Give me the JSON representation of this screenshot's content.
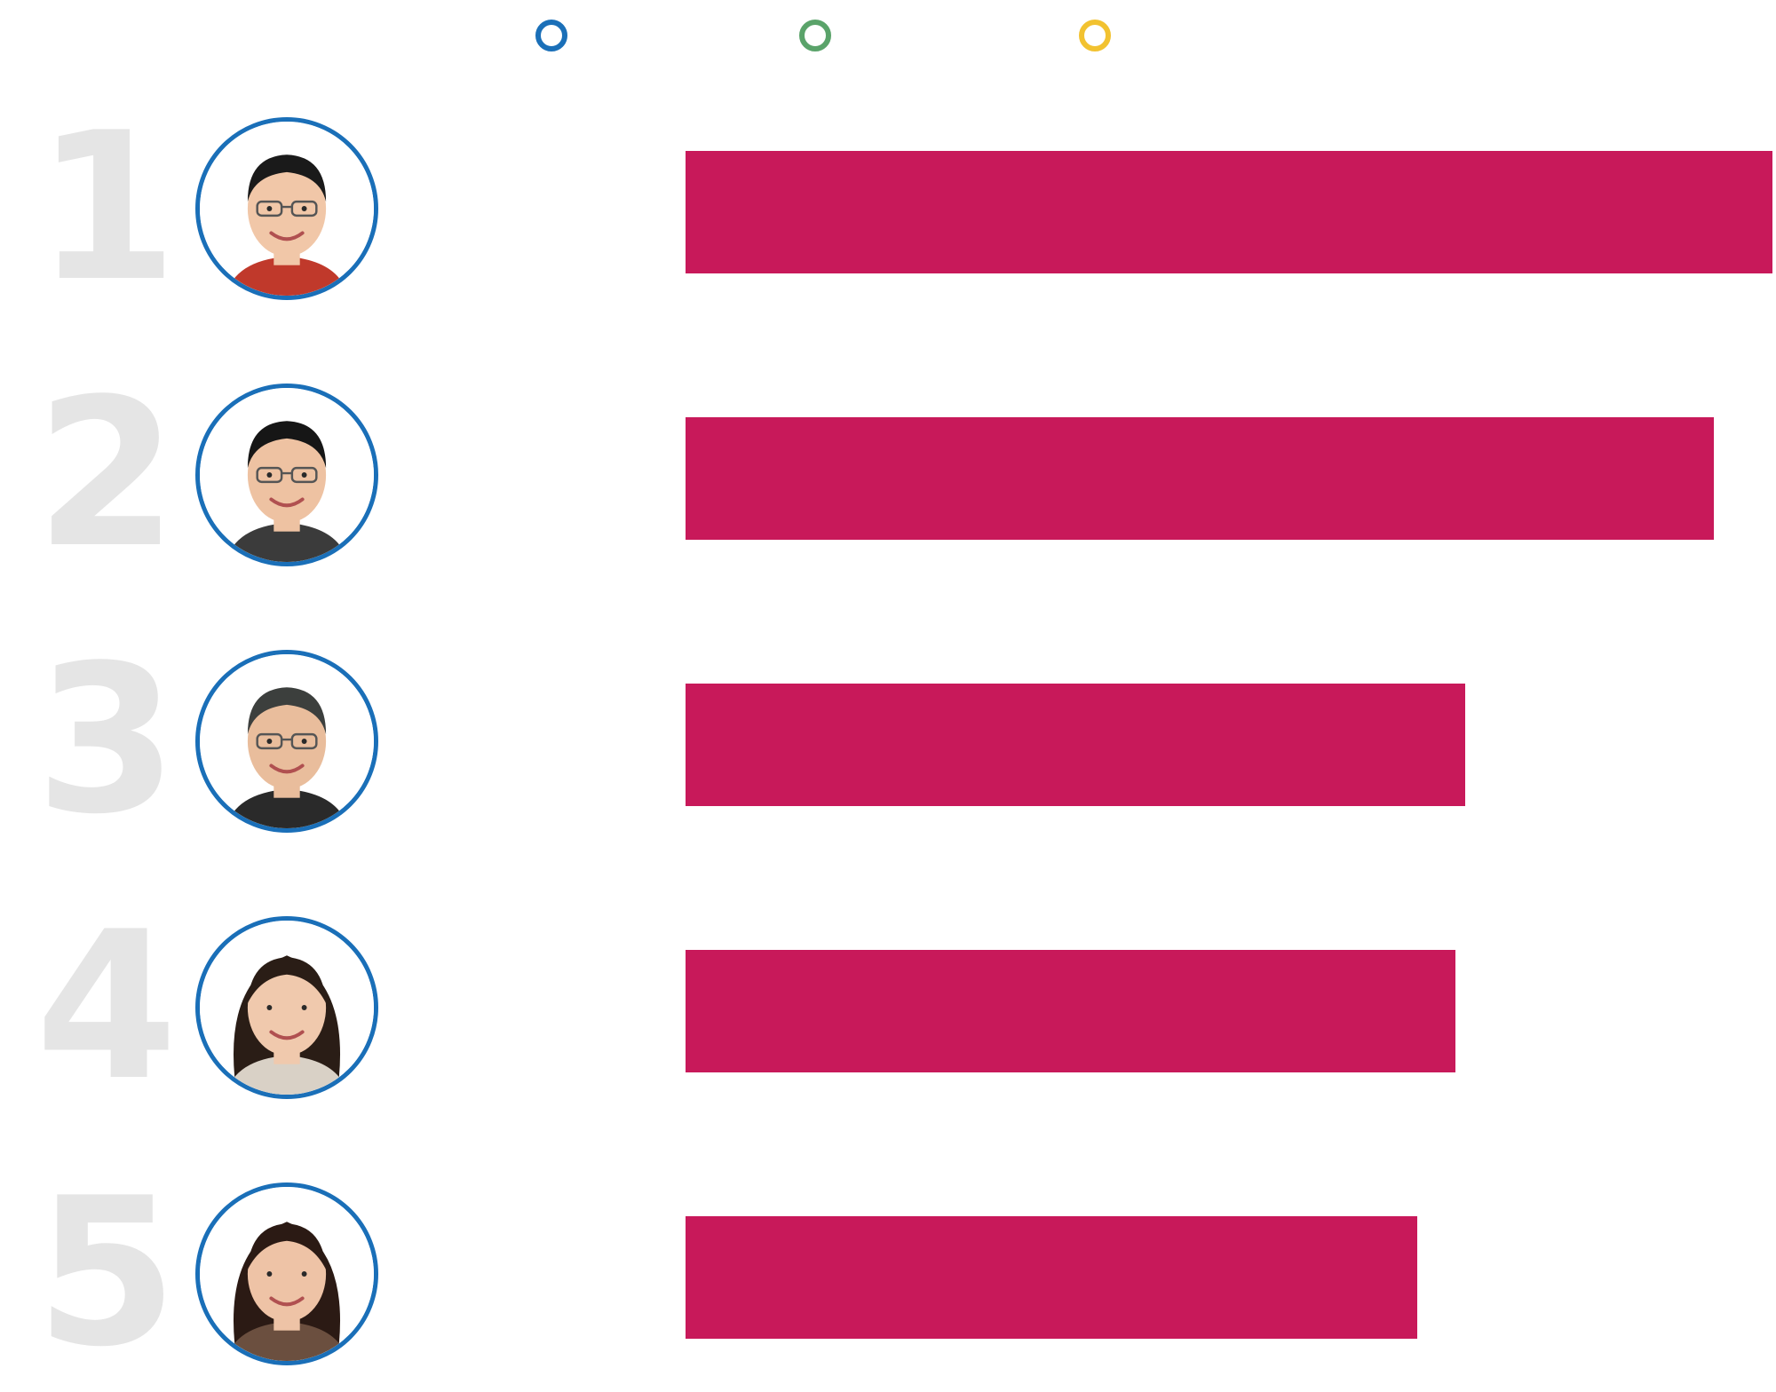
{
  "chart_data": {
    "type": "bar",
    "orientation": "horizontal",
    "categories": [
      "1",
      "2",
      "3",
      "4",
      "5"
    ],
    "values": [
      100,
      94.6,
      71.7,
      70.8,
      67.3
    ],
    "xlim": [
      0,
      100
    ],
    "grid": false,
    "bar_color": "#c8195a",
    "legend": {
      "placement": "top",
      "markers": [
        {
          "color": "#1a6fb8"
        },
        {
          "color": "#5aa36a"
        },
        {
          "color": "#f2c230"
        }
      ]
    },
    "avatar_border_color": "#1a6fb8",
    "rank_color": "#e5e5e5"
  }
}
